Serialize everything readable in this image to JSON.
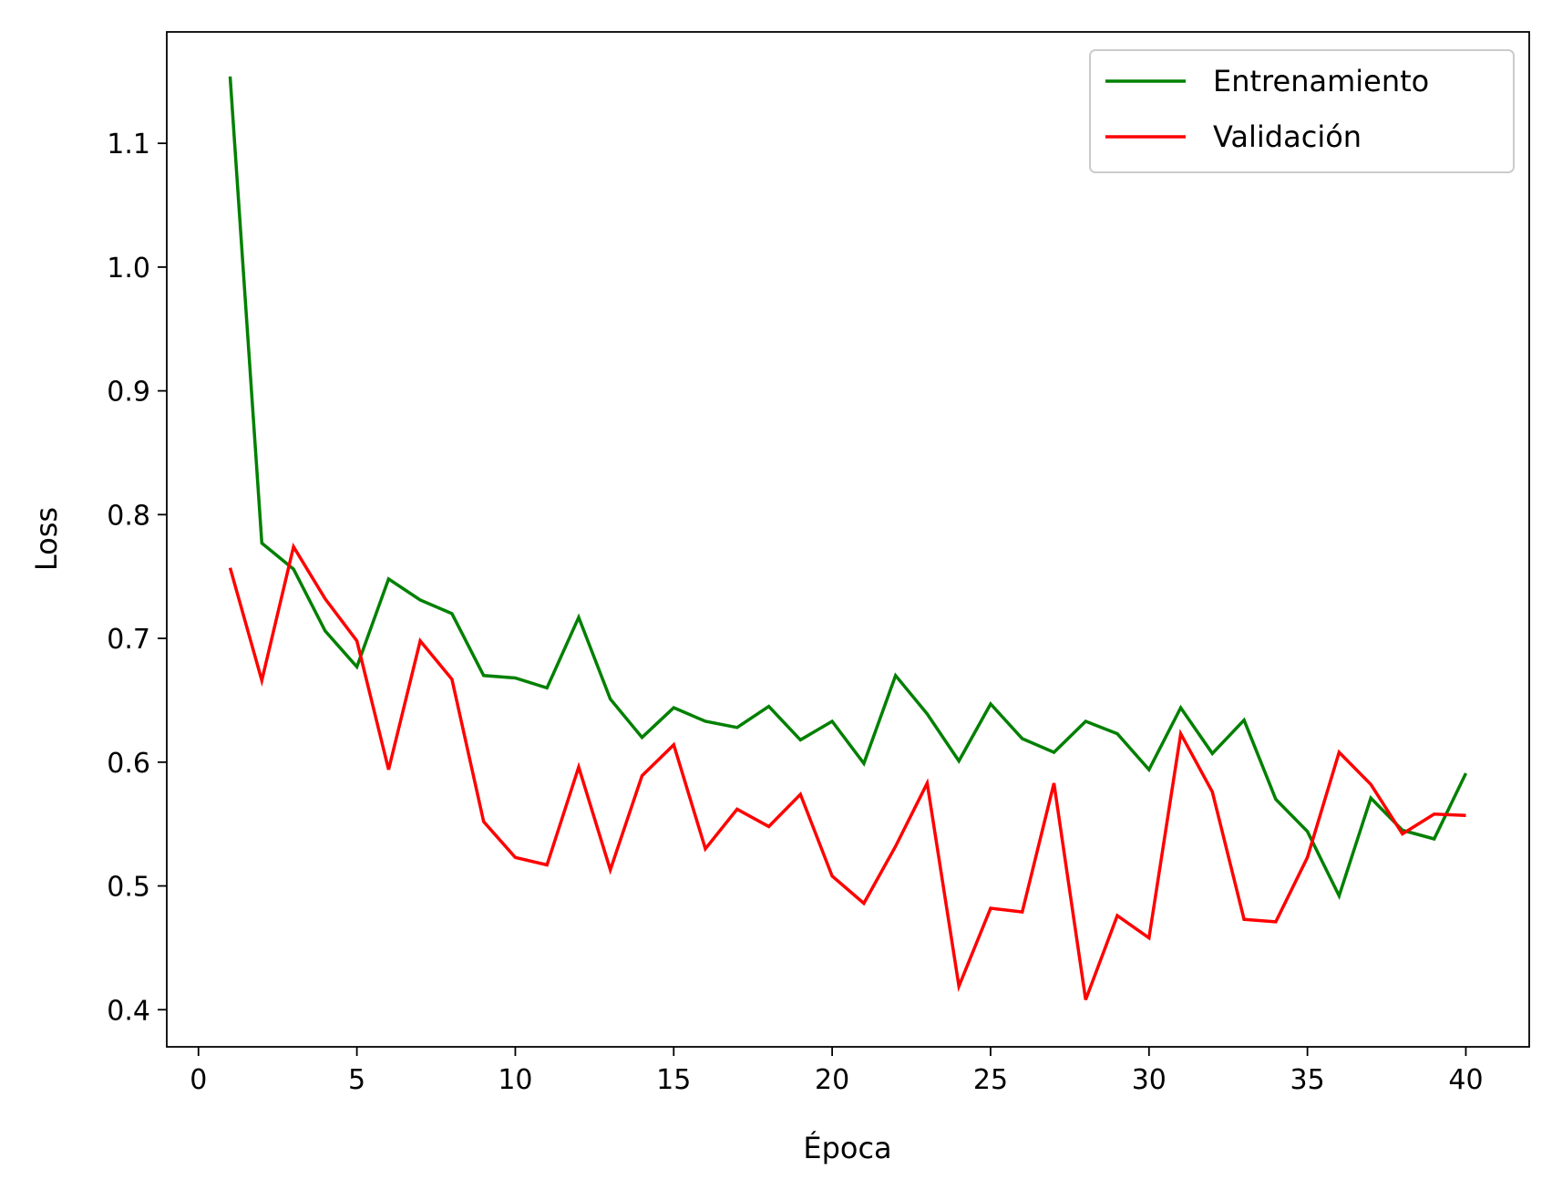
{
  "chart_data": {
    "type": "line",
    "xlabel": "Época",
    "ylabel": "Loss",
    "xlim": [
      -1,
      42
    ],
    "ylim": [
      0.37,
      1.19
    ],
    "xticks": [
      0,
      5,
      10,
      15,
      20,
      25,
      30,
      35,
      40
    ],
    "xtick_labels": [
      "0",
      "5",
      "10",
      "15",
      "20",
      "25",
      "30",
      "35",
      "40"
    ],
    "yticks": [
      0.4,
      0.5,
      0.6,
      0.7,
      0.8,
      0.9,
      1.0,
      1.1
    ],
    "ytick_labels": [
      "0.4",
      "0.5",
      "0.6",
      "0.7",
      "0.8",
      "0.9",
      "1.0",
      "1.1"
    ],
    "grid": false,
    "legend_position": "top-right",
    "x": [
      1,
      2,
      3,
      4,
      5,
      6,
      7,
      8,
      9,
      10,
      11,
      12,
      13,
      14,
      15,
      16,
      17,
      18,
      19,
      20,
      21,
      22,
      23,
      24,
      25,
      26,
      27,
      28,
      29,
      30,
      31,
      32,
      33,
      34,
      35,
      36,
      37,
      38,
      39,
      40
    ],
    "series": [
      {
        "name": "Entrenamiento",
        "color": "#008000",
        "values": [
          1.154,
          0.777,
          0.756,
          0.706,
          0.677,
          0.748,
          0.731,
          0.72,
          0.67,
          0.668,
          0.66,
          0.717,
          0.651,
          0.62,
          0.644,
          0.633,
          0.628,
          0.645,
          0.618,
          0.633,
          0.599,
          0.67,
          0.639,
          0.601,
          0.647,
          0.619,
          0.608,
          0.633,
          0.623,
          0.594,
          0.644,
          0.607,
          0.634,
          0.57,
          0.544,
          0.492,
          0.571,
          0.545,
          0.538,
          0.591
        ]
      },
      {
        "name": "Validación",
        "color": "#ff0000",
        "values": [
          0.757,
          0.666,
          0.774,
          0.732,
          0.698,
          0.594,
          0.698,
          0.667,
          0.552,
          0.523,
          0.517,
          0.596,
          0.513,
          0.589,
          0.614,
          0.53,
          0.562,
          0.548,
          0.574,
          0.508,
          0.486,
          0.532,
          0.583,
          0.419,
          0.482,
          0.479,
          0.583,
          0.408,
          0.476,
          0.458,
          0.623,
          0.576,
          0.473,
          0.471,
          0.523,
          0.608,
          0.582,
          0.542,
          0.558,
          0.557
        ]
      }
    ]
  }
}
